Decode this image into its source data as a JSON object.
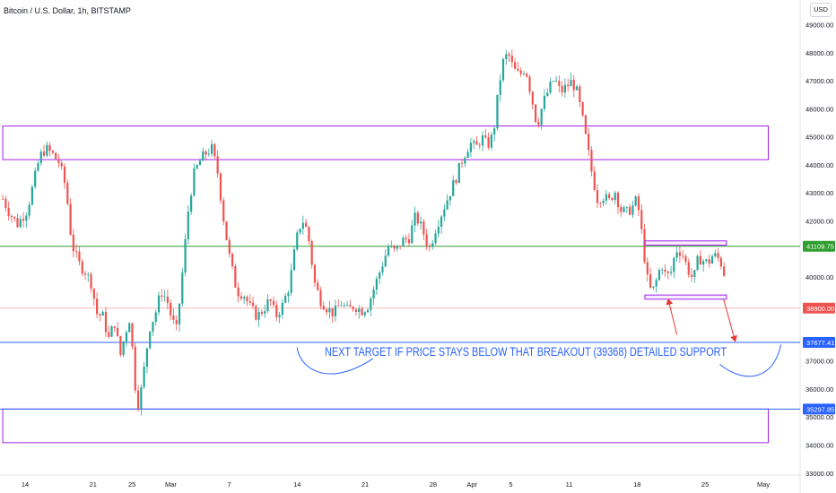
{
  "symbol": {
    "title": "Bitcoin / U.S. Dollar, 1h, BITSTAMP",
    "currency_button": "USD"
  },
  "colors": {
    "up": "#26a69a",
    "down": "#ef5350",
    "zone": "#a020f0",
    "green_line": "#2e9e2e",
    "blue_line": "#2962ff",
    "red_line": "#e53935",
    "annotation_text": "#2962ff",
    "axis_text": "#131722",
    "last_price_tag": "#ef5350"
  },
  "chart_data": {
    "type": "candlestick",
    "ylim": [
      33000,
      49700
    ],
    "y_ticks": [
      {
        "value": 49000,
        "label": "49000.00"
      },
      {
        "value": 48000,
        "label": "48000.00"
      },
      {
        "value": 47000,
        "label": "47000.00"
      },
      {
        "value": 46000,
        "label": "46000.00"
      },
      {
        "value": 45000,
        "label": "45000.00"
      },
      {
        "value": 44000,
        "label": "44000.00"
      },
      {
        "value": 43000,
        "label": "43000.00"
      },
      {
        "value": 42000,
        "label": "42000.00"
      },
      {
        "value": 40000,
        "label": "40000.00"
      },
      {
        "value": 37000,
        "label": "37000.00"
      },
      {
        "value": 36000,
        "label": "36000.00"
      },
      {
        "value": 35000,
        "label": "35000.00"
      },
      {
        "value": 34000,
        "label": "34000.00"
      },
      {
        "value": 33000,
        "label": "33000.00"
      }
    ],
    "x_ticks": [
      {
        "label": "14",
        "day": 0
      },
      {
        "label": "21",
        "day": 7
      },
      {
        "label": "25",
        "day": 11
      },
      {
        "label": "Mar",
        "day": 15
      },
      {
        "label": "7",
        "day": 21
      },
      {
        "label": "14",
        "day": 28
      },
      {
        "label": "21",
        "day": 35
      },
      {
        "label": "28",
        "day": 42
      },
      {
        "label": "Apr",
        "day": 46
      },
      {
        "label": "5",
        "day": 50
      },
      {
        "label": "11",
        "day": 56
      },
      {
        "label": "18",
        "day": 63
      },
      {
        "label": "25",
        "day": 70
      },
      {
        "label": "May",
        "day": 76
      }
    ],
    "x_range_days": [
      -2.3,
      81
    ],
    "price_path": [
      [
        -2.3,
        42800
      ],
      [
        -1.6,
        42300
      ],
      [
        -0.8,
        41900
      ],
      [
        0.2,
        42400
      ],
      [
        0.9,
        43400
      ],
      [
        1.5,
        44300
      ],
      [
        2.1,
        44600
      ],
      [
        2.8,
        44400
      ],
      [
        3.5,
        44100
      ],
      [
        4.2,
        43200
      ],
      [
        4.8,
        41200
      ],
      [
        5.5,
        40500
      ],
      [
        6.2,
        40200
      ],
      [
        6.8,
        39800
      ],
      [
        7.4,
        38700
      ],
      [
        8.0,
        38600
      ],
      [
        8.6,
        37800
      ],
      [
        9.2,
        38400
      ],
      [
        9.8,
        37200
      ],
      [
        10.3,
        38000
      ],
      [
        10.8,
        38600
      ],
      [
        11.3,
        36200
      ],
      [
        11.7,
        35400
      ],
      [
        12.2,
        36600
      ],
      [
        12.8,
        38200
      ],
      [
        13.4,
        38700
      ],
      [
        14.0,
        39500
      ],
      [
        14.6,
        39200
      ],
      [
        15.1,
        38500
      ],
      [
        15.6,
        38100
      ],
      [
        16.2,
        40200
      ],
      [
        16.8,
        42400
      ],
      [
        17.3,
        43600
      ],
      [
        17.9,
        44100
      ],
      [
        18.5,
        44400
      ],
      [
        19.2,
        44600
      ],
      [
        19.8,
        43800
      ],
      [
        20.5,
        41900
      ],
      [
        21.1,
        40600
      ],
      [
        21.8,
        39500
      ],
      [
        22.5,
        39400
      ],
      [
        23.2,
        38900
      ],
      [
        23.9,
        38600
      ],
      [
        24.6,
        38900
      ],
      [
        25.2,
        39200
      ],
      [
        25.8,
        38600
      ],
      [
        26.5,
        39000
      ],
      [
        27.2,
        39700
      ],
      [
        27.9,
        41300
      ],
      [
        28.5,
        42100
      ],
      [
        29.1,
        41600
      ],
      [
        29.8,
        39800
      ],
      [
        30.4,
        39200
      ],
      [
        31.1,
        38900
      ],
      [
        31.8,
        38700
      ],
      [
        32.5,
        39100
      ],
      [
        33.2,
        38800
      ],
      [
        33.9,
        39000
      ],
      [
        34.6,
        38800
      ],
      [
        35.3,
        39000
      ],
      [
        36.0,
        39700
      ],
      [
        36.7,
        40400
      ],
      [
        37.4,
        41100
      ],
      [
        38.1,
        40900
      ],
      [
        38.8,
        41300
      ],
      [
        39.5,
        41400
      ],
      [
        40.2,
        42200
      ],
      [
        40.9,
        41700
      ],
      [
        41.6,
        41000
      ],
      [
        42.3,
        41800
      ],
      [
        43.0,
        42400
      ],
      [
        43.7,
        43000
      ],
      [
        44.4,
        43600
      ],
      [
        45.1,
        44300
      ],
      [
        45.8,
        44800
      ],
      [
        46.4,
        44600
      ],
      [
        47.0,
        45000
      ],
      [
        47.6,
        44700
      ],
      [
        48.2,
        45100
      ],
      [
        48.6,
        46300
      ],
      [
        49.1,
        47600
      ],
      [
        49.7,
        48000
      ],
      [
        50.3,
        47400
      ],
      [
        50.9,
        47200
      ],
      [
        51.5,
        47500
      ],
      [
        52.1,
        46500
      ],
      [
        52.7,
        45400
      ],
      [
        53.3,
        46200
      ],
      [
        53.9,
        46700
      ],
      [
        54.5,
        47100
      ],
      [
        55.1,
        46600
      ],
      [
        55.7,
        46800
      ],
      [
        56.3,
        47000
      ],
      [
        56.8,
        46600
      ],
      [
        57.3,
        45800
      ],
      [
        57.8,
        44800
      ],
      [
        58.3,
        43800
      ],
      [
        58.9,
        42800
      ],
      [
        59.5,
        42900
      ],
      [
        60.1,
        42700
      ],
      [
        60.7,
        43100
      ],
      [
        61.3,
        42400
      ],
      [
        61.9,
        42300
      ],
      [
        62.5,
        42500
      ],
      [
        63.0,
        42800
      ],
      [
        63.5,
        41500
      ],
      [
        64.0,
        40000
      ],
      [
        64.5,
        39400
      ],
      [
        65.0,
        39900
      ],
      [
        65.5,
        40500
      ],
      [
        66.0,
        40000
      ],
      [
        66.5,
        40200
      ],
      [
        67.0,
        41000
      ],
      [
        67.6,
        40900
      ],
      [
        68.2,
        40300
      ],
      [
        68.8,
        39900
      ],
      [
        69.3,
        40700
      ],
      [
        69.8,
        40600
      ],
      [
        70.3,
        40500
      ],
      [
        70.8,
        40800
      ],
      [
        71.3,
        40700
      ],
      [
        71.8,
        40400
      ],
      [
        72.2,
        39700
      ]
    ],
    "levels": [
      {
        "name": "level-41109",
        "value": 41109.75,
        "label": "41109.75",
        "color": "#2e9e2e"
      },
      {
        "name": "level-38900",
        "value": 38900.0,
        "label": "38900.00",
        "color": "#ef5350"
      },
      {
        "name": "level-37677",
        "value": 37677.41,
        "label": "37677.41",
        "color": "#2962ff"
      },
      {
        "name": "level-35297",
        "value": 35297.85,
        "label": "35297.85",
        "color": "#2962ff"
      }
    ],
    "zones": [
      {
        "name": "resistance-zone",
        "from_day": -2.3,
        "to_day": 76.5,
        "top": 45400,
        "bottom": 44200
      },
      {
        "name": "lower-support-zone",
        "from_day": -2.3,
        "to_day": 76.5,
        "top": 35300,
        "bottom": 34100
      }
    ],
    "small_boxes": [
      {
        "name": "upper-breakout-box",
        "from_day": 63.8,
        "to_day": 72.2,
        "top": 41300,
        "bottom": 41150
      },
      {
        "name": "lower-breakout-box",
        "from_day": 63.8,
        "to_day": 72.2,
        "top": 39369,
        "bottom": 39220
      }
    ],
    "arrows": [
      {
        "name": "arrow-from-support",
        "from": [
          67.1,
          37950
        ],
        "to": [
          66.2,
          39220
        ]
      },
      {
        "name": "arrow-to-target",
        "from": [
          71.9,
          39220
        ],
        "to": [
          73.1,
          37720
        ]
      }
    ],
    "annotation": "NEXT TARGET IF PRICE STAYS BELOW THAT BREAKOUT (39368) DETAILED SUPPORT",
    "curves": [
      {
        "name": "left-bracket-curve",
        "points": [
          [
            28.0,
            37500
          ],
          [
            28.2,
            36800
          ],
          [
            31.0,
            36000
          ],
          [
            35.8,
            37100
          ]
        ]
      },
      {
        "name": "right-bracket-curve",
        "points": [
          [
            71.5,
            36900
          ],
          [
            74.0,
            36200
          ],
          [
            77.0,
            36300
          ],
          [
            77.8,
            37600
          ]
        ]
      }
    ]
  }
}
